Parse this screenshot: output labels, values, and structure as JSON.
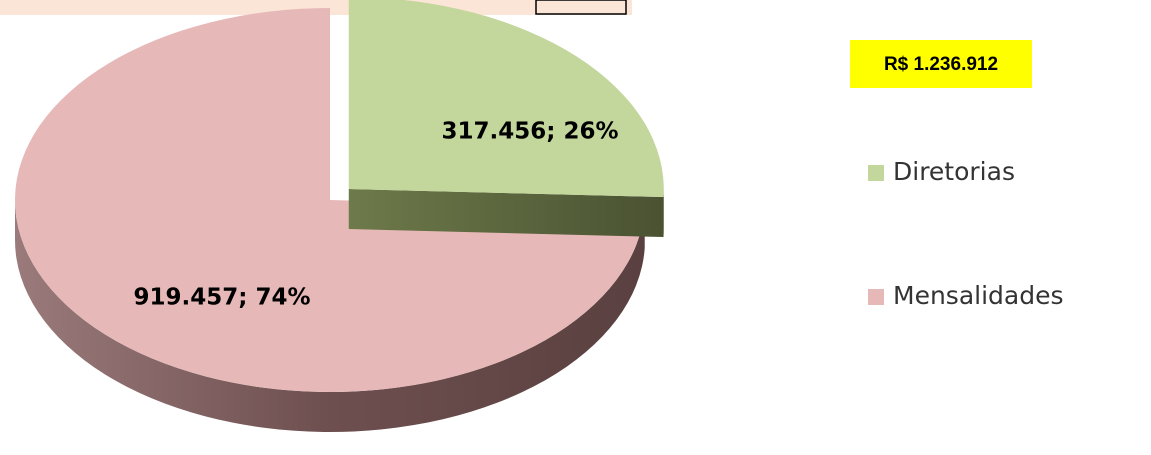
{
  "chart_data": {
    "type": "pie",
    "annotation": "R$ 1.236.912",
    "categories": [
      "Diretorias",
      "Mensalidades"
    ],
    "values": [
      317456,
      919457
    ],
    "value_labels": [
      "317.456; 26%",
      "919.457; 74%"
    ],
    "colors": [
      "#c3d69b",
      "#e6b9b8"
    ],
    "explode": [
      true,
      false
    ],
    "legend": "right"
  }
}
